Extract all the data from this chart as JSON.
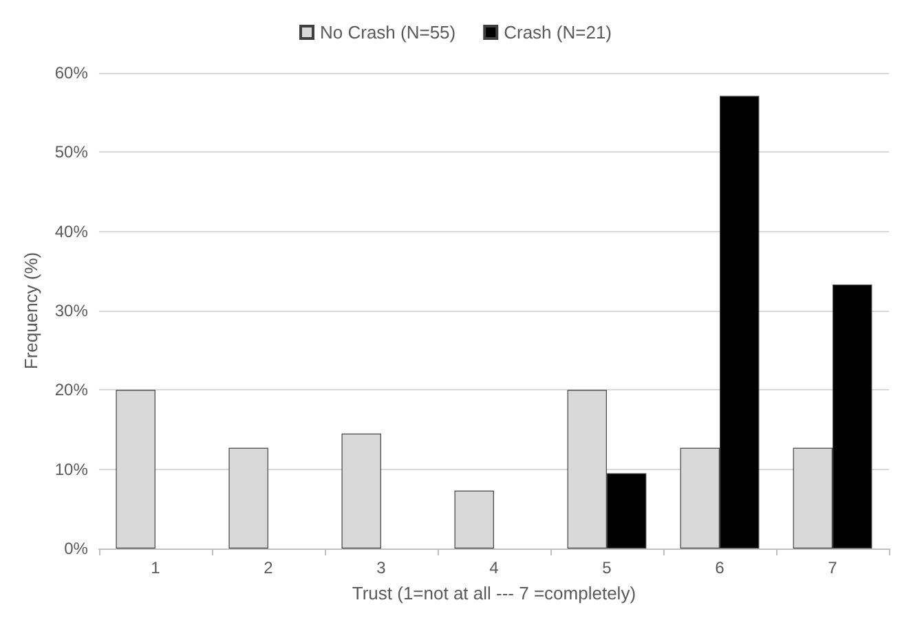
{
  "chart_data": {
    "type": "bar",
    "xlabel": "Trust (1=not at all --- 7 =completely)",
    "ylabel": "Frequency (%)",
    "categories": [
      "1",
      "2",
      "3",
      "4",
      "5",
      "6",
      "7"
    ],
    "series": [
      {
        "name": "No Crash (N=55)",
        "color": "#d9d9d9",
        "values": [
          20.0,
          12.7,
          14.5,
          7.3,
          20.0,
          12.7,
          12.7
        ]
      },
      {
        "name": "Crash (N=21)",
        "color": "#000000",
        "values": [
          0,
          0,
          0,
          0,
          9.5,
          57.1,
          33.3
        ]
      }
    ],
    "ylim": [
      0,
      60
    ],
    "yticks": [
      {
        "value": 0,
        "label": "0%"
      },
      {
        "value": 10,
        "label": "10%"
      },
      {
        "value": 20,
        "label": "20%"
      },
      {
        "value": 30,
        "label": "30%"
      },
      {
        "value": 40,
        "label": "40%"
      },
      {
        "value": 50,
        "label": "50%"
      },
      {
        "value": 60,
        "label": "60%"
      }
    ],
    "grid": "y",
    "legend": "top"
  }
}
